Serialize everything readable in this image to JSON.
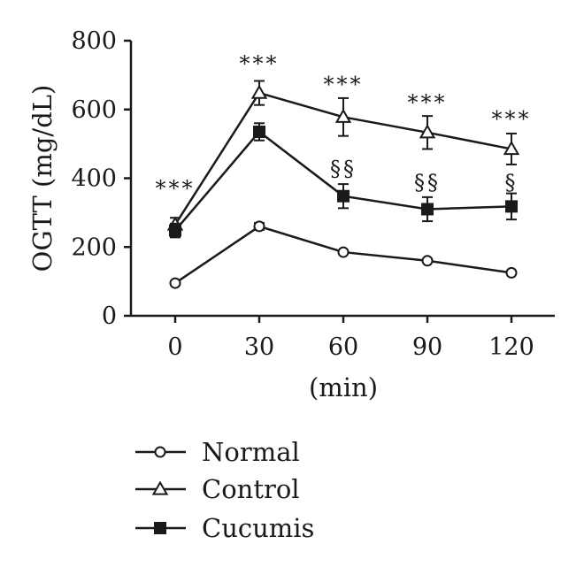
{
  "chart_data": {
    "type": "line",
    "ylabel": "OGTT (mg/dL)",
    "xlabel": "(min)",
    "x": [
      0,
      30,
      60,
      90,
      120
    ],
    "x_ticks": [
      "0",
      "30",
      "60",
      "90",
      "120"
    ],
    "ylim": [
      0,
      800
    ],
    "y_ticks": [
      "0",
      "200",
      "400",
      "600",
      "800"
    ],
    "y_tick_values": [
      0,
      200,
      400,
      600,
      800
    ],
    "grid": false,
    "legend_position": "bottom-left",
    "series": [
      {
        "name": "Normal",
        "marker": "open-circle",
        "values": [
          95,
          260,
          185,
          160,
          125
        ],
        "errors": [
          0,
          10,
          0,
          0,
          0
        ]
      },
      {
        "name": "Control",
        "marker": "open-triangle",
        "values": [
          265,
          648,
          578,
          533,
          485
        ],
        "errors": [
          20,
          35,
          55,
          48,
          45
        ]
      },
      {
        "name": "Cucumis",
        "marker": "filled-square",
        "values": [
          248,
          535,
          348,
          310,
          318
        ],
        "errors": [
          20,
          25,
          35,
          35,
          38
        ]
      }
    ],
    "annotations": [
      {
        "x": 0,
        "y": 350,
        "text": "***",
        "type": "stars"
      },
      {
        "x": 30,
        "y": 712,
        "text": "***",
        "type": "stars"
      },
      {
        "x": 60,
        "y": 652,
        "text": "***",
        "type": "stars"
      },
      {
        "x": 90,
        "y": 600,
        "text": "***",
        "type": "stars"
      },
      {
        "x": 120,
        "y": 552,
        "text": "***",
        "type": "stars"
      },
      {
        "x": 60,
        "y": 406,
        "text": "§§",
        "type": "section"
      },
      {
        "x": 90,
        "y": 366,
        "text": "§§",
        "type": "section"
      },
      {
        "x": 120,
        "y": 366,
        "text": "§",
        "type": "section"
      }
    ]
  }
}
